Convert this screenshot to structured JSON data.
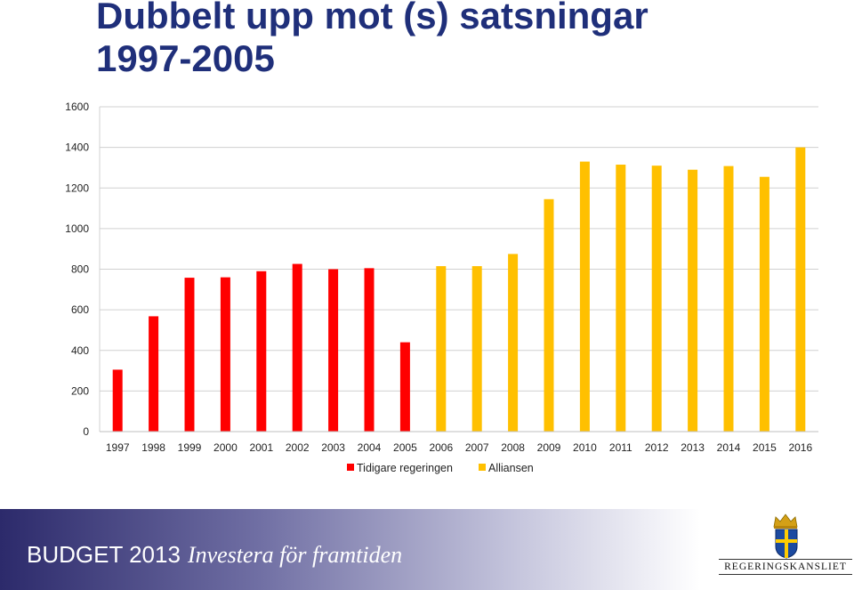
{
  "title_lines": [
    "Dubbelt upp mot (s) satsningar",
    "1997-2005"
  ],
  "chart_data": {
    "type": "bar",
    "categories": [
      "1997",
      "1998",
      "1999",
      "2000",
      "2001",
      "2002",
      "2003",
      "2004",
      "2005",
      "2006",
      "2007",
      "2008",
      "2009",
      "2010",
      "2011",
      "2012",
      "2013",
      "2014",
      "2015",
      "2016"
    ],
    "series": [
      {
        "name": "Tidigare regeringen",
        "color": "#ff0000",
        "values": [
          305,
          568,
          758,
          760,
          790,
          826,
          800,
          805,
          440,
          null,
          null,
          null,
          null,
          null,
          null,
          null,
          null,
          null,
          null,
          null
        ]
      },
      {
        "name": "Alliansen",
        "color": "#ffc000",
        "values": [
          null,
          null,
          null,
          null,
          null,
          null,
          null,
          null,
          null,
          815,
          815,
          875,
          1145,
          1330,
          1315,
          1310,
          1290,
          1308,
          1255,
          1400
        ]
      }
    ],
    "yticks": [
      0,
      200,
      400,
      600,
      800,
      1000,
      1200,
      1400,
      1600
    ],
    "ylim": [
      0,
      1600
    ],
    "gridlines": true,
    "legend_position": "bottom"
  },
  "footer": {
    "budget": "BUDGET 2013",
    "slogan": "Investera för framtiden",
    "logo_text": "REGERINGSKANSLIET"
  }
}
